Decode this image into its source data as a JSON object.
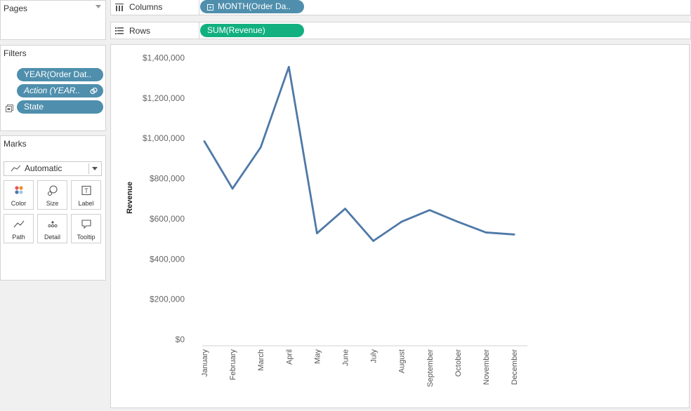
{
  "pages": {
    "title": "Pages"
  },
  "filters": {
    "title": "Filters",
    "pills": [
      {
        "label": "YEAR(Order Dat.."
      },
      {
        "label": "Action (YEAR.."
      },
      {
        "label": "State"
      }
    ]
  },
  "marks": {
    "title": "Marks",
    "mark_type": "Automatic",
    "buttons": [
      "Color",
      "Size",
      "Label",
      "Path",
      "Detail",
      "Tooltip"
    ]
  },
  "shelves": {
    "columns": {
      "label": "Columns",
      "pill": "MONTH(Order Da.."
    },
    "rows": {
      "label": "Rows",
      "pill": "SUM(Revenue)"
    }
  },
  "colors": {
    "pill_blue": "#4f8fad",
    "pill_green": "#12b07f",
    "line": "#4e79a7"
  },
  "chart_data": {
    "type": "line",
    "ylabel": "Revenue",
    "ylim": [
      0,
      1400000
    ],
    "yticks": [
      0,
      200000,
      400000,
      600000,
      800000,
      1000000,
      1200000,
      1400000
    ],
    "ytick_labels": [
      "$0",
      "$200,000",
      "$400,000",
      "$600,000",
      "$800,000",
      "$1,000,000",
      "$1,200,000",
      "$1,400,000"
    ],
    "categories": [
      "January",
      "February",
      "March",
      "April",
      "May",
      "June",
      "July",
      "August",
      "September",
      "October",
      "November",
      "December"
    ],
    "values": [
      985000,
      750000,
      955000,
      1355000,
      528000,
      650000,
      490000,
      585000,
      643000,
      585000,
      532000,
      522000
    ]
  }
}
